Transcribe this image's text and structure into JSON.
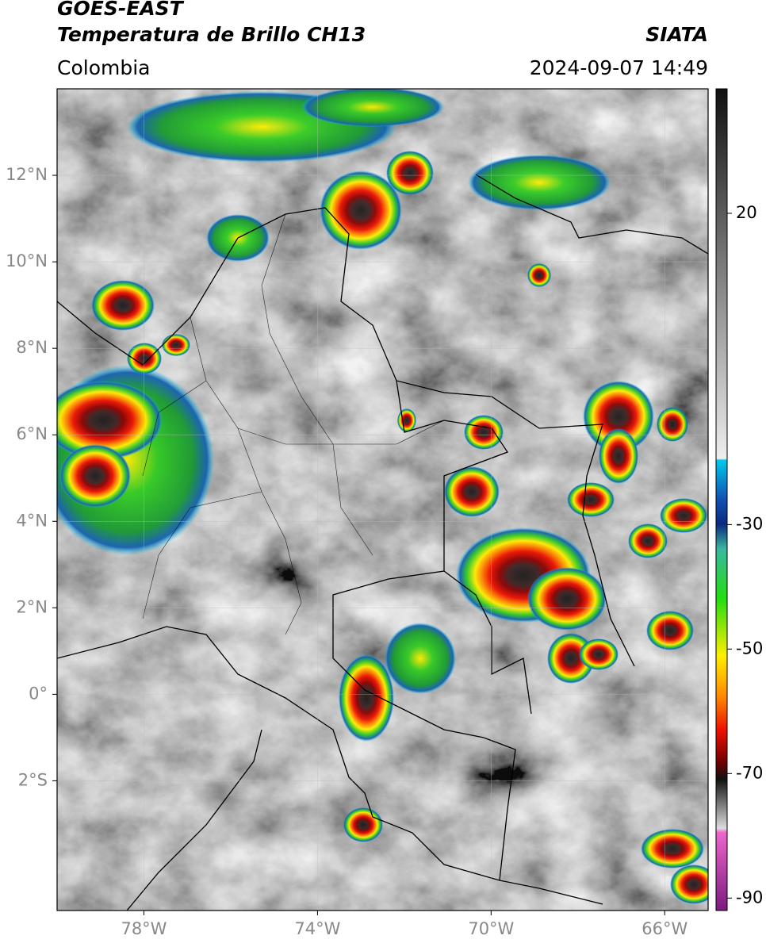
{
  "header": {
    "title": "GOES-EAST",
    "product": "Temperatura de Brillo CH13",
    "source": "SIATA",
    "region": "Colombia",
    "datetime": "2024-09-07 14:49"
  },
  "map": {
    "xlim": [
      -80,
      -65
    ],
    "ylim": [
      -5,
      14
    ],
    "xticks": [
      {
        "value": -78,
        "label": "78°W"
      },
      {
        "value": -74,
        "label": "74°W"
      },
      {
        "value": -70,
        "label": "70°W"
      },
      {
        "value": -66,
        "label": "66°W"
      }
    ],
    "yticks": [
      {
        "value": 12,
        "label": "12°N"
      },
      {
        "value": 10,
        "label": "10°N"
      },
      {
        "value": 8,
        "label": "8°N"
      },
      {
        "value": 6,
        "label": "6°N"
      },
      {
        "value": 4,
        "label": "4°N"
      },
      {
        "value": 2,
        "label": "2°N"
      },
      {
        "value": 0,
        "label": "0°"
      },
      {
        "value": -2,
        "label": "2°S"
      }
    ],
    "grid": true,
    "colorbar": {
      "lim": [
        -92,
        40
      ],
      "ticks": [
        20,
        -30,
        -50,
        -70,
        -90
      ]
    }
  }
}
